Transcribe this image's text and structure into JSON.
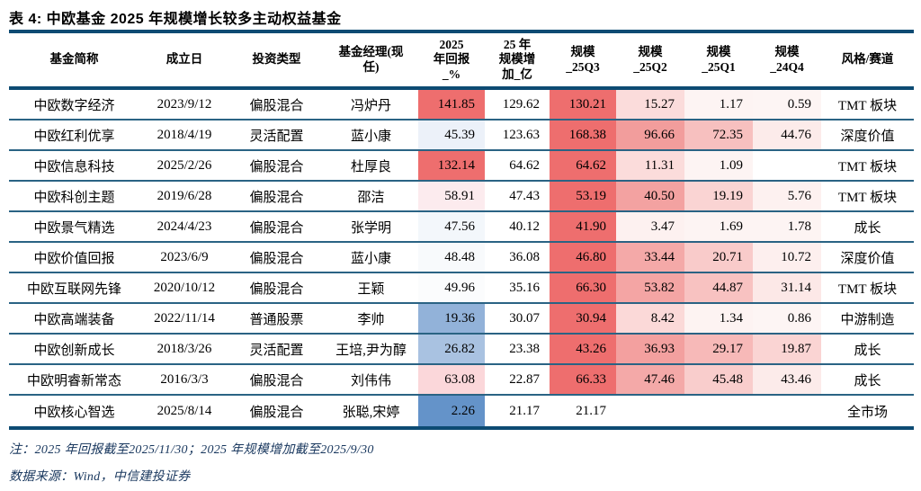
{
  "title": "表 4: 中欧基金 2025 年规模增长较多主动权益基金",
  "colors": {
    "rule_thick": "#0d4b73",
    "rule_thin": "#2a6384",
    "heat_red": "#ee6e6e",
    "heat_blue": "#6493c9",
    "note_text": "#17365d"
  },
  "table": {
    "headers": [
      "基金简称",
      "成立日",
      "投资类型",
      "基金经理(现\n任)",
      "2025\n年回报\n_%",
      "25 年\n规模增\n加_亿",
      "规模\n_25Q3",
      "规模\n_25Q2",
      "规模\n_25Q1",
      "规模\n_24Q4",
      "风格/赛道"
    ],
    "rows": [
      {
        "name": "中欧数字经济",
        "date": "2023/9/12",
        "type": "偏股混合",
        "manager": "冯炉丹",
        "cells": [
          {
            "v": "141.85",
            "bg": "#ee6e6e"
          },
          {
            "v": "129.62",
            "bg": ""
          },
          {
            "v": "130.21",
            "bg": "#ee6e6e"
          },
          {
            "v": "15.27",
            "bg": "#fbdcdb"
          },
          {
            "v": "1.17",
            "bg": "#fdf4f3"
          },
          {
            "v": "0.59",
            "bg": "#fdf5f4"
          }
        ],
        "style": "TMT 板块"
      },
      {
        "name": "中欧红利优享",
        "date": "2018/4/19",
        "type": "灵活配置",
        "manager": "蓝小康",
        "cells": [
          {
            "v": "45.39",
            "bg": "#ecf1f9"
          },
          {
            "v": "123.63",
            "bg": ""
          },
          {
            "v": "168.38",
            "bg": "#ee6e6e"
          },
          {
            "v": "96.66",
            "bg": "#f29d9c"
          },
          {
            "v": "72.35",
            "bg": "#f7c0bf"
          },
          {
            "v": "44.76",
            "bg": "#fcebea"
          }
        ],
        "style": "深度价值"
      },
      {
        "name": "中欧信息科技",
        "date": "2025/2/26",
        "type": "偏股混合",
        "manager": "杜厚良",
        "cells": [
          {
            "v": "132.14",
            "bg": "#ee6e6e"
          },
          {
            "v": "64.62",
            "bg": ""
          },
          {
            "v": "64.62",
            "bg": "#ee6e6e"
          },
          {
            "v": "11.31",
            "bg": "#fbdcdb"
          },
          {
            "v": "1.09",
            "bg": "#fdf4f3"
          },
          {
            "v": "",
            "bg": ""
          }
        ],
        "style": "TMT 板块"
      },
      {
        "name": "中欧科创主题",
        "date": "2019/6/28",
        "type": "偏股混合",
        "manager": "邵洁",
        "cells": [
          {
            "v": "58.91",
            "bg": "#fcebee"
          },
          {
            "v": "47.43",
            "bg": ""
          },
          {
            "v": "53.19",
            "bg": "#ee6e6e"
          },
          {
            "v": "40.50",
            "bg": "#f3a2a1"
          },
          {
            "v": "19.19",
            "bg": "#fad4d3"
          },
          {
            "v": "5.76",
            "bg": "#fdf1f0"
          }
        ],
        "style": "TMT 板块"
      },
      {
        "name": "中欧景气精选",
        "date": "2024/4/23",
        "type": "偏股混合",
        "manager": "张学明",
        "cells": [
          {
            "v": "47.56",
            "bg": "#f3f7fb"
          },
          {
            "v": "40.12",
            "bg": ""
          },
          {
            "v": "41.90",
            "bg": "#ee6e6e"
          },
          {
            "v": "3.47",
            "bg": "#fdf1f0"
          },
          {
            "v": "1.69",
            "bg": "#fdf4f3"
          },
          {
            "v": "1.78",
            "bg": "#fdf4f3"
          }
        ],
        "style": "成长"
      },
      {
        "name": "中欧价值回报",
        "date": "2023/6/9",
        "type": "偏股混合",
        "manager": "蓝小康",
        "cells": [
          {
            "v": "48.48",
            "bg": "#f8fafc"
          },
          {
            "v": "36.08",
            "bg": ""
          },
          {
            "v": "46.80",
            "bg": "#ee6e6e"
          },
          {
            "v": "33.44",
            "bg": "#f4a9a8"
          },
          {
            "v": "20.71",
            "bg": "#f9cbca"
          },
          {
            "v": "10.72",
            "bg": "#fdefee"
          }
        ],
        "style": "深度价值"
      },
      {
        "name": "中欧互联网先锋",
        "date": "2020/10/12",
        "type": "偏股混合",
        "manager": "王颖",
        "cells": [
          {
            "v": "49.96",
            "bg": "#fbfcfd"
          },
          {
            "v": "35.16",
            "bg": ""
          },
          {
            "v": "66.30",
            "bg": "#ee6e6e"
          },
          {
            "v": "53.82",
            "bg": "#f4a5a4"
          },
          {
            "v": "44.87",
            "bg": "#f8c2c1"
          },
          {
            "v": "31.14",
            "bg": "#fce8e7"
          }
        ],
        "style": "TMT 板块"
      },
      {
        "name": "中欧高端装备",
        "date": "2022/11/14",
        "type": "普通股票",
        "manager": "李帅",
        "cells": [
          {
            "v": "19.36",
            "bg": "#92b2d9"
          },
          {
            "v": "30.07",
            "bg": ""
          },
          {
            "v": "30.94",
            "bg": "#ee6e6e"
          },
          {
            "v": "8.42",
            "bg": "#fbd9d8"
          },
          {
            "v": "1.34",
            "bg": "#fdf3f2"
          },
          {
            "v": "0.86",
            "bg": "#fdf5f4"
          }
        ],
        "style": "中游制造"
      },
      {
        "name": "中欧创新成长",
        "date": "2018/3/26",
        "type": "灵活配置",
        "manager": "王培,尹为醇",
        "cells": [
          {
            "v": "26.82",
            "bg": "#a9c2e1"
          },
          {
            "v": "23.38",
            "bg": ""
          },
          {
            "v": "43.26",
            "bg": "#ee6e6e"
          },
          {
            "v": "36.93",
            "bg": "#f3a09f"
          },
          {
            "v": "29.17",
            "bg": "#f7b9b8"
          },
          {
            "v": "19.87",
            "bg": "#fad4d3"
          }
        ],
        "style": "成长"
      },
      {
        "name": "中欧明睿新常态",
        "date": "2016/3/3",
        "type": "偏股混合",
        "manager": "刘伟伟",
        "cells": [
          {
            "v": "63.08",
            "bg": "#fbd7da"
          },
          {
            "v": "22.87",
            "bg": ""
          },
          {
            "v": "66.33",
            "bg": "#ee6e6e"
          },
          {
            "v": "47.46",
            "bg": "#f4a9a8"
          },
          {
            "v": "45.48",
            "bg": "#f9cdcc"
          },
          {
            "v": "43.46",
            "bg": "#fcebea"
          }
        ],
        "style": "成长"
      },
      {
        "name": "中欧核心智选",
        "date": "2025/8/14",
        "type": "偏股混合",
        "manager": "张聪,宋婷",
        "cells": [
          {
            "v": "2.26",
            "bg": "#6493c9"
          },
          {
            "v": "21.17",
            "bg": ""
          },
          {
            "v": "21.17",
            "bg": ""
          },
          {
            "v": "",
            "bg": ""
          },
          {
            "v": "",
            "bg": ""
          },
          {
            "v": "",
            "bg": ""
          }
        ],
        "style": "全市场"
      }
    ]
  },
  "notes": [
    "注：2025 年回报截至2025/11/30；2025 年规模增加截至2025/9/30",
    "数据来源：Wind，中信建投证券"
  ]
}
